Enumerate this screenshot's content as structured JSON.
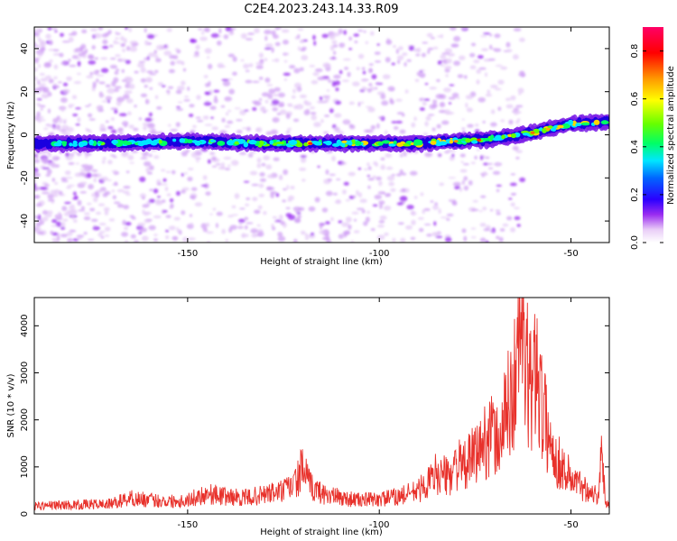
{
  "title": "C2E4.2023.243.14.33.R09",
  "chart_data": [
    {
      "type": "heatmap",
      "xlabel": "Height of straight line (km)",
      "ylabel": "Frequency (Hz)",
      "xlim": [
        -190,
        -40
      ],
      "ylim": [
        -50,
        50
      ],
      "xticks": [
        -150,
        -100,
        -50
      ],
      "yticks": [
        -40,
        -20,
        0,
        20,
        40
      ],
      "colorbar": {
        "label": "Normalized spectral amplitude",
        "range": [
          0,
          0.9
        ],
        "ticks": [
          0.0,
          0.2,
          0.4,
          0.6,
          0.8
        ],
        "tick_labels": [
          "0.0",
          "0.2",
          "0.4",
          "0.6",
          "0.8"
        ]
      },
      "ridge": {
        "x": [
          -190,
          -170,
          -150,
          -130,
          -110,
          -90,
          -80,
          -70,
          -60,
          -50,
          -40
        ],
        "y": [
          -4,
          -4,
          -3,
          -4,
          -4,
          -4,
          -3,
          -2,
          1,
          5,
          6
        ]
      },
      "grid": false
    },
    {
      "type": "line",
      "xlabel": "Height of straight line (km)",
      "ylabel": "SNR (10 * v/v)",
      "xlim": [
        -190,
        -40
      ],
      "ylim": [
        0,
        4600
      ],
      "xticks": [
        -150,
        -100,
        -50
      ],
      "yticks": [
        0,
        1000,
        2000,
        3000,
        4000
      ],
      "color": "#e8312b",
      "series": [
        {
          "x": [
            -190,
            -180,
            -170,
            -165,
            -160,
            -155,
            -150,
            -145,
            -140,
            -135,
            -130,
            -125,
            -122,
            -120,
            -118,
            -115,
            -110,
            -105,
            -100,
            -95,
            -90,
            -87,
            -85,
            -82,
            -80,
            -78,
            -75,
            -73,
            -71,
            -69,
            -67,
            -65,
            -64,
            -63,
            -62,
            -61,
            -60,
            -59,
            -58,
            -57,
            -56,
            -55,
            -53,
            -51,
            -49,
            -47,
            -45,
            -43,
            -42,
            -41,
            -40
          ],
          "y": [
            180,
            200,
            220,
            350,
            300,
            280,
            300,
            450,
            380,
            350,
            420,
            500,
            650,
            1000,
            600,
            450,
            350,
            300,
            320,
            380,
            500,
            700,
            900,
            800,
            1100,
            1000,
            1300,
            1500,
            1800,
            1500,
            2200,
            2700,
            3300,
            4300,
            3200,
            2900,
            2500,
            3600,
            2600,
            2100,
            1800,
            1400,
            1100,
            900,
            700,
            600,
            500,
            400,
            1200,
            300,
            200
          ]
        }
      ],
      "grid": false
    }
  ]
}
